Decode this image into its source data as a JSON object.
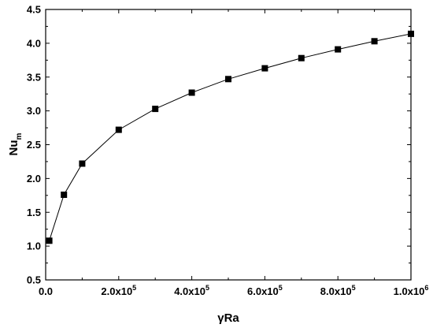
{
  "chart_data": {
    "type": "line",
    "title": "",
    "xlabel": "γRa",
    "ylabel": {
      "base": "Nu",
      "subscript": "m"
    },
    "xlim": [
      0,
      1000000
    ],
    "ylim": [
      0.5,
      4.5
    ],
    "x_ticks": [
      {
        "value": 0,
        "label": "0.0",
        "exp": ""
      },
      {
        "value": 200000,
        "label": "2.0x10",
        "exp": "5"
      },
      {
        "value": 400000,
        "label": "4.0x10",
        "exp": "5"
      },
      {
        "value": 600000,
        "label": "6.0x10",
        "exp": "5"
      },
      {
        "value": 800000,
        "label": "8.0x10",
        "exp": "5"
      },
      {
        "value": 1000000,
        "label": "1.0x10",
        "exp": "6"
      }
    ],
    "x_minor_ticks": [
      100000,
      300000,
      500000,
      700000,
      900000
    ],
    "y_ticks": [
      {
        "value": 0.5,
        "label": "0.5"
      },
      {
        "value": 1.0,
        "label": "1.0"
      },
      {
        "value": 1.5,
        "label": "1.5"
      },
      {
        "value": 2.0,
        "label": "2.0"
      },
      {
        "value": 2.5,
        "label": "2.5"
      },
      {
        "value": 3.0,
        "label": "3.0"
      },
      {
        "value": 3.5,
        "label": "3.5"
      },
      {
        "value": 4.0,
        "label": "4.0"
      },
      {
        "value": 4.5,
        "label": "4.5"
      }
    ],
    "y_minor_ticks": [
      0.75,
      1.25,
      1.75,
      2.25,
      2.75,
      3.25,
      3.75,
      4.25
    ],
    "grid": false,
    "legend": false,
    "series": [
      {
        "marker": "square",
        "color": "#000000",
        "x": [
          10000,
          50000,
          100000,
          200000,
          300000,
          400000,
          500000,
          600000,
          700000,
          800000,
          900000,
          1000000
        ],
        "y": [
          1.08,
          1.76,
          2.22,
          2.72,
          3.03,
          3.27,
          3.47,
          3.63,
          3.78,
          3.91,
          4.03,
          4.14
        ]
      }
    ]
  }
}
